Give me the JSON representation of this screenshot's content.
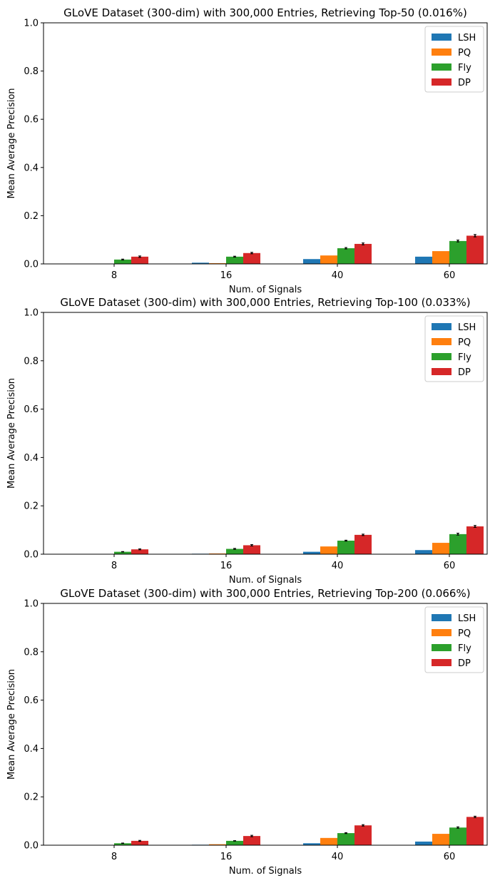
{
  "chart_data": [
    {
      "type": "bar",
      "title": "GLoVE Dataset (300-dim) with 300,000 Entries, Retrieving Top-50 (0.016%)",
      "xlabel": "Num. of Signals",
      "ylabel": "Mean Average Precision",
      "ylim": [
        0,
        1
      ],
      "yticks": [
        "0.0",
        "0.2",
        "0.4",
        "0.6",
        "0.8",
        "1.0"
      ],
      "categories": [
        "8",
        "16",
        "40",
        "60"
      ],
      "legend_position": "top-right",
      "series": [
        {
          "name": "LSH",
          "color": "#1f77b4",
          "values": [
            0.0,
            0.005,
            0.02,
            0.03
          ],
          "errors": [
            0,
            0,
            0,
            0
          ]
        },
        {
          "name": "PQ",
          "color": "#ff7f0e",
          "values": [
            0.0,
            0.003,
            0.035,
            0.053
          ],
          "errors": [
            0,
            0,
            0,
            0
          ]
        },
        {
          "name": "Fly",
          "color": "#2ca02c",
          "values": [
            0.018,
            0.03,
            0.065,
            0.095
          ],
          "errors": [
            0.002,
            0.002,
            0.003,
            0.004
          ]
        },
        {
          "name": "DP",
          "color": "#d62728",
          "values": [
            0.03,
            0.045,
            0.083,
            0.117
          ],
          "errors": [
            0.003,
            0.003,
            0.004,
            0.005
          ]
        }
      ]
    },
    {
      "type": "bar",
      "title": "GLoVE Dataset (300-dim) with 300,000 Entries, Retrieving Top-100 (0.033%)",
      "xlabel": "Num. of Signals",
      "ylabel": "Mean Average Precision",
      "ylim": [
        0,
        1
      ],
      "yticks": [
        "0.0",
        "0.2",
        "0.4",
        "0.6",
        "0.8",
        "1.0"
      ],
      "categories": [
        "8",
        "16",
        "40",
        "60"
      ],
      "legend_position": "top-right",
      "series": [
        {
          "name": "LSH",
          "color": "#1f77b4",
          "values": [
            0.0,
            0.002,
            0.01,
            0.017
          ],
          "errors": [
            0,
            0,
            0,
            0
          ]
        },
        {
          "name": "PQ",
          "color": "#ff7f0e",
          "values": [
            0.0,
            0.003,
            0.032,
            0.047
          ],
          "errors": [
            0,
            0,
            0,
            0
          ]
        },
        {
          "name": "Fly",
          "color": "#2ca02c",
          "values": [
            0.01,
            0.022,
            0.056,
            0.083
          ],
          "errors": [
            0.001,
            0.002,
            0.002,
            0.004
          ]
        },
        {
          "name": "DP",
          "color": "#d62728",
          "values": [
            0.02,
            0.037,
            0.08,
            0.115
          ],
          "errors": [
            0.002,
            0.003,
            0.003,
            0.004
          ]
        }
      ]
    },
    {
      "type": "bar",
      "title": "GLoVE Dataset (300-dim) with 300,000 Entries, Retrieving Top-200 (0.066%)",
      "xlabel": "Num. of Signals",
      "ylabel": "Mean Average Precision",
      "ylim": [
        0,
        1
      ],
      "yticks": [
        "0.0",
        "0.2",
        "0.4",
        "0.6",
        "0.8",
        "1.0"
      ],
      "categories": [
        "8",
        "16",
        "40",
        "60"
      ],
      "legend_position": "top-right",
      "series": [
        {
          "name": "LSH",
          "color": "#1f77b4",
          "values": [
            0.0,
            0.002,
            0.008,
            0.015
          ],
          "errors": [
            0,
            0,
            0,
            0
          ]
        },
        {
          "name": "PQ",
          "color": "#ff7f0e",
          "values": [
            0.0,
            0.004,
            0.03,
            0.047
          ],
          "errors": [
            0,
            0,
            0,
            0
          ]
        },
        {
          "name": "Fly",
          "color": "#2ca02c",
          "values": [
            0.008,
            0.018,
            0.05,
            0.073
          ],
          "errors": [
            0.001,
            0.001,
            0.002,
            0.003
          ]
        },
        {
          "name": "DP",
          "color": "#d62728",
          "values": [
            0.018,
            0.038,
            0.082,
            0.117
          ],
          "errors": [
            0.002,
            0.003,
            0.003,
            0.003
          ]
        }
      ]
    }
  ]
}
